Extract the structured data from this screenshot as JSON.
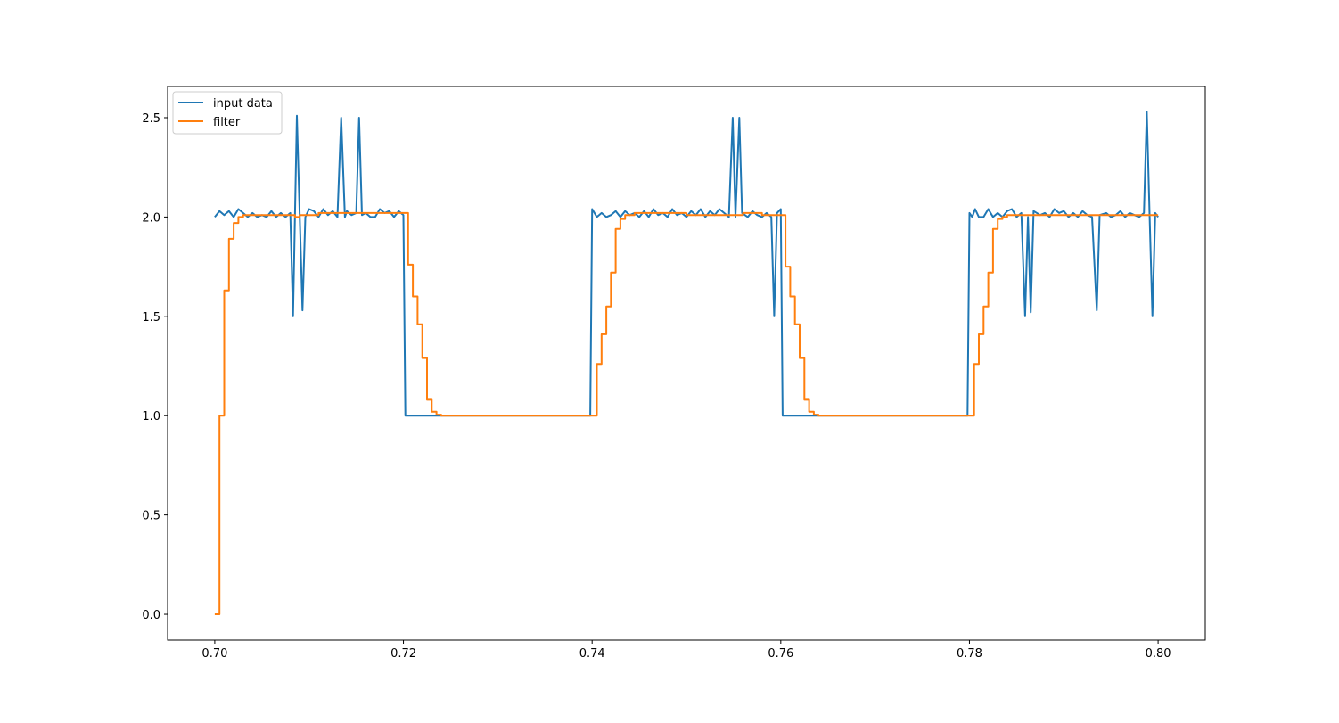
{
  "chart_data": {
    "type": "line",
    "title": "",
    "xlabel": "",
    "ylabel": "",
    "xlim": [
      0.695,
      0.805
    ],
    "ylim": [
      -0.13,
      2.657
    ],
    "xticks": [
      0.7,
      0.72,
      0.74,
      0.76,
      0.78,
      0.8
    ],
    "xtick_labels": [
      "0.70",
      "0.72",
      "0.74",
      "0.76",
      "0.78",
      "0.80"
    ],
    "yticks": [
      0.0,
      0.5,
      1.0,
      1.5,
      2.0,
      2.5
    ],
    "ytick_labels": [
      "0.0",
      "0.5",
      "1.0",
      "1.5",
      "2.0",
      "2.5"
    ],
    "grid": false,
    "legend_placement": "top-left",
    "series": [
      {
        "name": "input data",
        "color": "#1f77b4",
        "drawstyle": "default",
        "points": [
          [
            0.7,
            2.0
          ],
          [
            0.7005,
            2.03
          ],
          [
            0.701,
            2.01
          ],
          [
            0.7015,
            2.03
          ],
          [
            0.702,
            2.0
          ],
          [
            0.7025,
            2.04
          ],
          [
            0.703,
            2.02
          ],
          [
            0.7035,
            2.0
          ],
          [
            0.704,
            2.02
          ],
          [
            0.7045,
            2.0
          ],
          [
            0.705,
            2.01
          ],
          [
            0.7055,
            2.0
          ],
          [
            0.706,
            2.03
          ],
          [
            0.7065,
            2.0
          ],
          [
            0.707,
            2.02
          ],
          [
            0.7075,
            2.0
          ],
          [
            0.708,
            2.02
          ],
          [
            0.7083,
            1.5
          ],
          [
            0.7087,
            2.51
          ],
          [
            0.709,
            2.02
          ],
          [
            0.7093,
            1.53
          ],
          [
            0.7096,
            2.0
          ],
          [
            0.71,
            2.04
          ],
          [
            0.7105,
            2.03
          ],
          [
            0.711,
            2.0
          ],
          [
            0.7115,
            2.04
          ],
          [
            0.712,
            2.01
          ],
          [
            0.7125,
            2.03
          ],
          [
            0.713,
            2.0
          ],
          [
            0.7134,
            2.5
          ],
          [
            0.7138,
            2.0
          ],
          [
            0.714,
            2.03
          ],
          [
            0.7145,
            2.01
          ],
          [
            0.715,
            2.02
          ],
          [
            0.7153,
            2.5
          ],
          [
            0.7156,
            2.01
          ],
          [
            0.716,
            2.02
          ],
          [
            0.7165,
            2.0
          ],
          [
            0.717,
            2.0
          ],
          [
            0.7175,
            2.04
          ],
          [
            0.718,
            2.02
          ],
          [
            0.7185,
            2.03
          ],
          [
            0.719,
            2.0
          ],
          [
            0.7195,
            2.03
          ],
          [
            0.72,
            2.01
          ],
          [
            0.7202,
            1.0
          ],
          [
            0.7398,
            1.0
          ],
          [
            0.74,
            2.04
          ],
          [
            0.7405,
            2.0
          ],
          [
            0.741,
            2.02
          ],
          [
            0.7415,
            2.0
          ],
          [
            0.742,
            2.01
          ],
          [
            0.7425,
            2.03
          ],
          [
            0.743,
            2.0
          ],
          [
            0.7435,
            2.03
          ],
          [
            0.744,
            2.01
          ],
          [
            0.7445,
            2.02
          ],
          [
            0.745,
            2.0
          ],
          [
            0.7455,
            2.03
          ],
          [
            0.746,
            2.0
          ],
          [
            0.7465,
            2.04
          ],
          [
            0.747,
            2.01
          ],
          [
            0.7475,
            2.02
          ],
          [
            0.748,
            2.0
          ],
          [
            0.7485,
            2.04
          ],
          [
            0.749,
            2.01
          ],
          [
            0.7495,
            2.02
          ],
          [
            0.75,
            2.0
          ],
          [
            0.7505,
            2.03
          ],
          [
            0.751,
            2.01
          ],
          [
            0.7515,
            2.04
          ],
          [
            0.752,
            2.0
          ],
          [
            0.7525,
            2.03
          ],
          [
            0.753,
            2.01
          ],
          [
            0.7535,
            2.04
          ],
          [
            0.754,
            2.02
          ],
          [
            0.7545,
            2.0
          ],
          [
            0.7549,
            2.5
          ],
          [
            0.7552,
            2.0
          ],
          [
            0.7556,
            2.5
          ],
          [
            0.7559,
            2.02
          ],
          [
            0.7565,
            2.0
          ],
          [
            0.757,
            2.03
          ],
          [
            0.7575,
            2.01
          ],
          [
            0.758,
            2.0
          ],
          [
            0.7585,
            2.02
          ],
          [
            0.759,
            2.0
          ],
          [
            0.7593,
            1.5
          ],
          [
            0.7596,
            2.02
          ],
          [
            0.76,
            2.04
          ],
          [
            0.7602,
            1.0
          ],
          [
            0.7798,
            1.0
          ],
          [
            0.78,
            2.02
          ],
          [
            0.7803,
            2.0
          ],
          [
            0.7806,
            2.04
          ],
          [
            0.781,
            2.0
          ],
          [
            0.7815,
            2.0
          ],
          [
            0.782,
            2.04
          ],
          [
            0.7825,
            2.0
          ],
          [
            0.783,
            2.02
          ],
          [
            0.7835,
            2.0
          ],
          [
            0.784,
            2.03
          ],
          [
            0.7845,
            2.04
          ],
          [
            0.785,
            2.0
          ],
          [
            0.7855,
            2.02
          ],
          [
            0.7859,
            1.5
          ],
          [
            0.7862,
            2.0
          ],
          [
            0.7865,
            1.52
          ],
          [
            0.7868,
            2.03
          ],
          [
            0.7875,
            2.01
          ],
          [
            0.788,
            2.02
          ],
          [
            0.7885,
            2.0
          ],
          [
            0.789,
            2.04
          ],
          [
            0.7895,
            2.02
          ],
          [
            0.79,
            2.03
          ],
          [
            0.7905,
            2.0
          ],
          [
            0.791,
            2.02
          ],
          [
            0.7915,
            2.0
          ],
          [
            0.792,
            2.03
          ],
          [
            0.7925,
            2.01
          ],
          [
            0.793,
            2.0
          ],
          [
            0.7935,
            1.53
          ],
          [
            0.7938,
            2.01
          ],
          [
            0.7945,
            2.02
          ],
          [
            0.795,
            2.0
          ],
          [
            0.7955,
            2.01
          ],
          [
            0.796,
            2.03
          ],
          [
            0.7965,
            2.0
          ],
          [
            0.797,
            2.02
          ],
          [
            0.7975,
            2.01
          ],
          [
            0.798,
            2.0
          ],
          [
            0.7985,
            2.02
          ],
          [
            0.7988,
            2.53
          ],
          [
            0.7991,
            2.0
          ],
          [
            0.7994,
            1.5
          ],
          [
            0.7997,
            2.02
          ],
          [
            0.8,
            2.0
          ]
        ]
      },
      {
        "name": "filter",
        "color": "#ff7f0e",
        "drawstyle": "steps-post",
        "points": [
          [
            0.7,
            0.0
          ],
          [
            0.7005,
            1.0
          ],
          [
            0.701,
            1.63
          ],
          [
            0.7015,
            1.89
          ],
          [
            0.702,
            1.97
          ],
          [
            0.7025,
            2.0
          ],
          [
            0.703,
            2.01
          ],
          [
            0.7085,
            2.0
          ],
          [
            0.709,
            2.01
          ],
          [
            0.711,
            2.02
          ],
          [
            0.716,
            2.02
          ],
          [
            0.718,
            2.02
          ],
          [
            0.7205,
            1.76
          ],
          [
            0.721,
            1.6
          ],
          [
            0.7215,
            1.46
          ],
          [
            0.722,
            1.29
          ],
          [
            0.7225,
            1.08
          ],
          [
            0.723,
            1.02
          ],
          [
            0.7235,
            1.005
          ],
          [
            0.724,
            1.0
          ],
          [
            0.7405,
            1.26
          ],
          [
            0.741,
            1.41
          ],
          [
            0.7415,
            1.55
          ],
          [
            0.742,
            1.72
          ],
          [
            0.7425,
            1.94
          ],
          [
            0.743,
            1.99
          ],
          [
            0.7435,
            2.01
          ],
          [
            0.7445,
            2.02
          ],
          [
            0.75,
            2.01
          ],
          [
            0.754,
            2.01
          ],
          [
            0.756,
            2.02
          ],
          [
            0.758,
            2.01
          ],
          [
            0.7605,
            1.75
          ],
          [
            0.761,
            1.6
          ],
          [
            0.7615,
            1.46
          ],
          [
            0.762,
            1.29
          ],
          [
            0.7625,
            1.08
          ],
          [
            0.763,
            1.02
          ],
          [
            0.7635,
            1.005
          ],
          [
            0.764,
            1.0
          ],
          [
            0.7805,
            1.26
          ],
          [
            0.781,
            1.41
          ],
          [
            0.7815,
            1.55
          ],
          [
            0.782,
            1.72
          ],
          [
            0.7825,
            1.94
          ],
          [
            0.783,
            1.99
          ],
          [
            0.7835,
            2.0
          ],
          [
            0.784,
            2.01
          ],
          [
            0.79,
            2.01
          ],
          [
            0.797,
            2.01
          ],
          [
            0.8,
            2.01
          ]
        ]
      }
    ]
  }
}
